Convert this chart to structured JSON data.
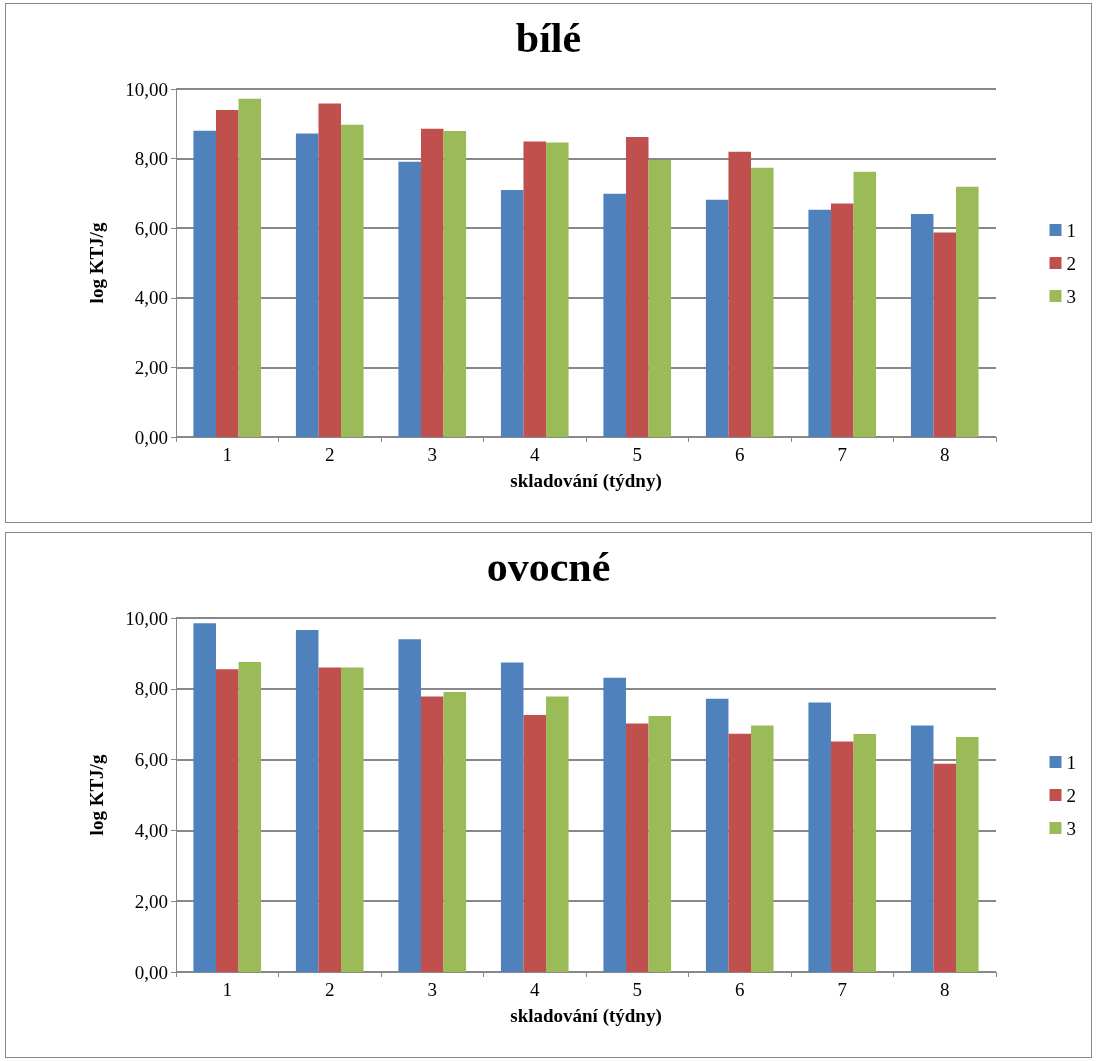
{
  "chart_data": [
    {
      "type": "bar",
      "title": "bílé",
      "xlabel": "skladování (týdny)",
      "ylabel": "log KTJ/g",
      "categories": [
        "1",
        "2",
        "3",
        "4",
        "5",
        "6",
        "7",
        "8"
      ],
      "series": [
        {
          "name": "1",
          "color": "#4f81bd",
          "values": [
            8.8,
            8.72,
            7.91,
            7.1,
            6.99,
            6.82,
            6.53,
            6.41
          ]
        },
        {
          "name": "2",
          "color": "#c0504d",
          "values": [
            9.4,
            9.58,
            8.86,
            8.49,
            8.62,
            8.2,
            6.71,
            5.88
          ]
        },
        {
          "name": "3",
          "color": "#9bbb59",
          "values": [
            9.72,
            8.97,
            8.79,
            8.46,
            7.96,
            7.74,
            7.62,
            7.19
          ]
        }
      ],
      "ylim": [
        0,
        10
      ],
      "yticks": [
        {
          "value": 0,
          "label": "0,00"
        },
        {
          "value": 2,
          "label": "2,00"
        },
        {
          "value": 4,
          "label": "4,00"
        },
        {
          "value": 6,
          "label": "6,00"
        },
        {
          "value": 8,
          "label": "8,00"
        },
        {
          "value": 10,
          "label": "10,00"
        }
      ],
      "grid": "y",
      "legend": "right"
    },
    {
      "type": "bar",
      "title": "ovocné",
      "xlabel": "skladování (týdny)",
      "ylabel": "log KTJ/g",
      "categories": [
        "1",
        "2",
        "3",
        "4",
        "5",
        "6",
        "7",
        "8"
      ],
      "series": [
        {
          "name": "1",
          "color": "#4f81bd",
          "values": [
            9.85,
            9.66,
            9.4,
            8.74,
            8.31,
            7.72,
            7.61,
            6.96
          ]
        },
        {
          "name": "2",
          "color": "#c0504d",
          "values": [
            8.55,
            8.6,
            7.78,
            7.26,
            7.02,
            6.73,
            6.51,
            5.88
          ]
        },
        {
          "name": "3",
          "color": "#9bbb59",
          "values": [
            8.76,
            8.6,
            7.91,
            7.78,
            7.23,
            6.96,
            6.72,
            6.64
          ]
        }
      ],
      "ylim": [
        0,
        10
      ],
      "yticks": [
        {
          "value": 0,
          "label": "0,00"
        },
        {
          "value": 2,
          "label": "2,00"
        },
        {
          "value": 4,
          "label": "4,00"
        },
        {
          "value": 6,
          "label": "6,00"
        },
        {
          "value": 8,
          "label": "8,00"
        },
        {
          "value": 10,
          "label": "10,00"
        }
      ],
      "grid": "y",
      "legend": "right"
    }
  ]
}
